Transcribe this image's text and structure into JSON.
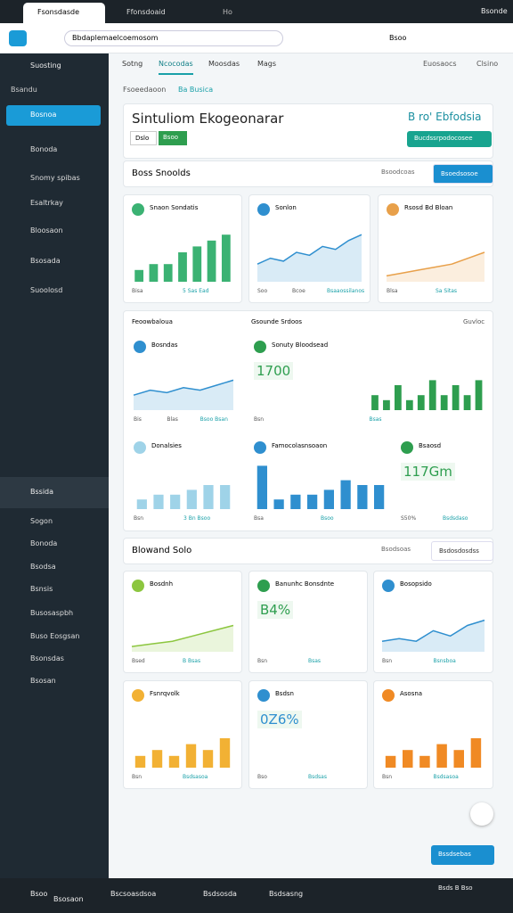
{
  "browser": {
    "tabs": [
      "Fsonsdasde",
      "Ffonsdoaid",
      "Ho"
    ],
    "url": "Bbdaplemaelcoemosom",
    "user": "Bsonde",
    "profile": "Bsoo"
  },
  "nav": {
    "tabs": [
      "Sotng",
      "Ncocodas",
      "Moosdas",
      "Mags"
    ],
    "actions": [
      "Euosaocs",
      "Clsino"
    ]
  },
  "sidebar": {
    "brand": "Suosting",
    "section": "Bsandu",
    "items": [
      "Bosnoa",
      "Bonoda",
      "Snomy spibas",
      "Esaltrkay",
      "Bloosaon",
      "Bsosada",
      "Suoolosd"
    ],
    "group": "Bssida",
    "group_items": [
      "Sogon",
      "Bonoda",
      "Bsodsa",
      "Bsnsis",
      "Busosaspbh",
      "Buso Eosgsan",
      "Bsonsdas",
      "Bsosan"
    ]
  },
  "breadcrumb": [
    "Fsoeedaoon",
    "Ba Busica"
  ],
  "header": {
    "title": "Sintuliom Ekogeonarar",
    "badge": "B ro' Ebfodsia",
    "chips": [
      "Dslo",
      "Bsoo"
    ],
    "button": "Bucdssrpodocosee"
  },
  "section1": {
    "title": "Boss Snoolds",
    "search": "Bsoodcoas",
    "button": "Bsoedsosoe"
  },
  "cards": [
    {
      "title": "Snaon Sondatis",
      "type": "bar",
      "color": "#3bb273",
      "ylim": [
        0,
        10
      ],
      "values": [
        2,
        3,
        3,
        5,
        6,
        7,
        8
      ],
      "footer": [
        "Bisa",
        "5 Sas Ead"
      ]
    },
    {
      "title": "Sonlon",
      "type": "area",
      "color": "#2f8fcf",
      "ylim": [
        0,
        10
      ],
      "values": [
        3,
        4,
        3.5,
        5,
        4.5,
        6,
        5.5,
        7,
        8
      ],
      "footer": [
        "Soo",
        "Bcoe",
        "Bsaaossilanos"
      ]
    },
    {
      "title": "Rsosd Bd Bloan",
      "type": "area",
      "color": "#e8a04a",
      "ylim": [
        0,
        10
      ],
      "values": [
        1,
        1.5,
        2,
        2.5,
        3,
        4,
        5
      ],
      "footer": [
        "Blsa",
        "Sa Sitas"
      ]
    }
  ],
  "panel": {
    "title": "Feoowbaloua",
    "subtitle": "Gsounde Srdoos",
    "link": "Guvloc",
    "cards": [
      {
        "title": "Bosndas",
        "type": "area",
        "color": "#2f8fcf",
        "ylim": [
          0,
          10
        ],
        "values": [
          3,
          4,
          3.5,
          4.5,
          4,
          5,
          6
        ],
        "footer": [
          "Bis",
          "Blas",
          "Bsoo Bsan"
        ]
      },
      {
        "title": "Sonuty Bloodsead",
        "type": "bar",
        "value": "1700",
        "color": "#2e9e4f",
        "ylim": [
          0,
          10
        ],
        "values": [
          3,
          2,
          5,
          2,
          3,
          6,
          3,
          5,
          3,
          6
        ],
        "footer": [
          "Bsn",
          "Bsas"
        ]
      },
      {
        "title": "Donalsies",
        "type": "bar",
        "color": "#9fd3e8",
        "ylim": [
          0,
          10
        ],
        "values": [
          2,
          3,
          3,
          4,
          5,
          5
        ],
        "footer": [
          "Bsn",
          "3 Bn Bsoo"
        ]
      },
      {
        "title": "Famocolasnsoaon",
        "type": "bar",
        "color": "#2f8fcf",
        "ylim": [
          0,
          10
        ],
        "values": [
          9,
          2,
          3,
          3,
          4,
          6,
          5,
          5
        ],
        "footer": [
          "Bsa",
          "Bsoo"
        ]
      },
      {
        "title": "Bsaosd",
        "type": "stat",
        "value": "117Gm",
        "color": "#2e9e4f",
        "footer": [
          "S50%",
          "Bsdsdaso"
        ]
      }
    ]
  },
  "section2": {
    "title": "Blowand Solo",
    "search": "Bsodsoas",
    "button": "Bsdosdosdss"
  },
  "cards2": [
    {
      "title": "Bosdnh",
      "type": "area",
      "color": "#8cc63f",
      "ylim": [
        0,
        10
      ],
      "values": [
        1,
        1.5,
        2,
        3,
        4,
        5
      ],
      "footer": [
        "Bsed",
        "B Bsas"
      ]
    },
    {
      "title": "Banunhc Bonsdnte",
      "type": "stat",
      "value": "B4%",
      "color": "#2e9e4f",
      "footer": [
        "Bsn",
        "Bsas"
      ]
    },
    {
      "title": "Bosopsido",
      "type": "area",
      "color": "#2f8fcf",
      "ylim": [
        0,
        10
      ],
      "values": [
        2,
        2.5,
        2,
        4,
        3,
        5,
        6
      ],
      "footer": [
        "Bsn",
        "Bsnsboa"
      ]
    },
    {
      "title": "Fsnrqvolk",
      "type": "bar",
      "color": "#f2b134",
      "ylim": [
        0,
        10
      ],
      "values": [
        2,
        3,
        2,
        4,
        3,
        5
      ],
      "footer": [
        "Bsn",
        "Bsdsasoa"
      ]
    },
    {
      "title": "Bsdsn",
      "type": "stat",
      "value": "0Z6%",
      "color": "#2f8fcf",
      "footer": [
        "Bso",
        "Bsdsas"
      ]
    },
    {
      "title": "Asosna",
      "type": "bar",
      "color": "#f08a24",
      "ylim": [
        0,
        10
      ],
      "values": [
        2,
        3,
        2,
        4,
        3,
        5
      ],
      "footer": [
        "Bsn",
        "Bsdsasoa"
      ]
    }
  ],
  "footer_button": "Bssdsebas",
  "taskbar": {
    "items": [
      "Bsoo",
      "Bsosaon",
      "Bscsoasdsoa",
      "Bsdsosda",
      "Bsdsasng"
    ],
    "clock": "Bsds B Bso"
  }
}
